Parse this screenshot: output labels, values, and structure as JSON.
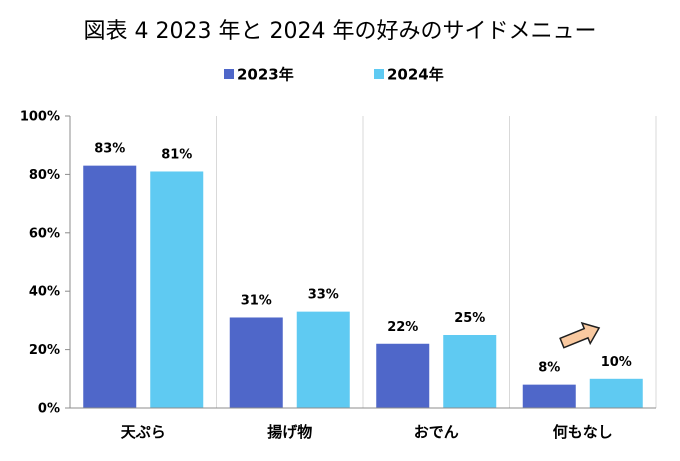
{
  "chart_data": {
    "type": "bar",
    "title": "図表 4  2023 年と 2024 年の好みのサイドメニュー",
    "categories": [
      "天ぷら",
      "揚げ物",
      "おでん",
      "何もなし"
    ],
    "series": [
      {
        "name": "2023年",
        "values": [
          83,
          31,
          22,
          8
        ],
        "labels": [
          "83%",
          "31%",
          "22%",
          "8%"
        ],
        "color": "#4f67c9"
      },
      {
        "name": "2024年",
        "values": [
          81,
          33,
          25,
          10
        ],
        "labels": [
          "81%",
          "33%",
          "25%",
          "10%"
        ],
        "color": "#5fcaf2"
      }
    ],
    "y_ticks": [
      {
        "value": 0,
        "label": "0%"
      },
      {
        "value": 20,
        "label": "20%"
      },
      {
        "value": 40,
        "label": "40%"
      },
      {
        "value": 60,
        "label": "60%"
      },
      {
        "value": 80,
        "label": "80%"
      },
      {
        "value": 100,
        "label": "100%"
      }
    ],
    "ylim": [
      0,
      100
    ],
    "grid": "vertical category separators",
    "legend_position": "top",
    "annotation": {
      "type": "arrow",
      "category": "何もなし",
      "direction": "up-right",
      "color": "#f9c9a0"
    }
  }
}
